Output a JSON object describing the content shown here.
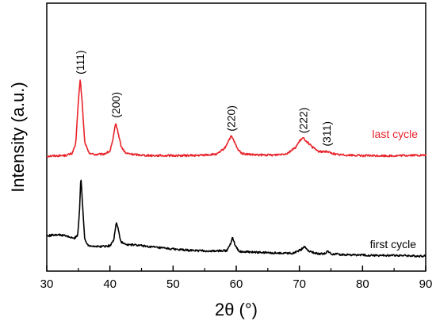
{
  "chart_data": {
    "type": "line",
    "xlabel": "2θ (°)",
    "ylabel": "Intensity (a.u.)",
    "xlim": [
      30,
      90
    ],
    "ylim": [
      0,
      100
    ],
    "xticks": [
      30,
      40,
      50,
      60,
      70,
      80,
      90
    ],
    "xtick_labels": [
      "30",
      "40",
      "50",
      "60",
      "70",
      "80",
      "90"
    ],
    "y_ticks_shown": false,
    "grid": false,
    "legend": "none",
    "series": [
      {
        "name": "last cycle",
        "color": "#e8232a",
        "points": [
          [
            30,
            49.3
          ],
          [
            33,
            49.6
          ],
          [
            34,
            50.5
          ],
          [
            34.6,
            55
          ],
          [
            35.0,
            75
          ],
          [
            35.3,
            84.7
          ],
          [
            35.6,
            74
          ],
          [
            36.0,
            56
          ],
          [
            36.6,
            51
          ],
          [
            37.5,
            50
          ],
          [
            39.0,
            50.2
          ],
          [
            40.0,
            51.5
          ],
          [
            40.5,
            57
          ],
          [
            40.9,
            64.7
          ],
          [
            41.3,
            60
          ],
          [
            41.8,
            53.5
          ],
          [
            42.5,
            50.6
          ],
          [
            44,
            50
          ],
          [
            46,
            49.6
          ],
          [
            50,
            49.5
          ],
          [
            54,
            49.6
          ],
          [
            57,
            50.2
          ],
          [
            58.2,
            53
          ],
          [
            58.8,
            56.5
          ],
          [
            59.2,
            58.5
          ],
          [
            59.6,
            56.5
          ],
          [
            60.2,
            52.5
          ],
          [
            61,
            50.4
          ],
          [
            63,
            49.8
          ],
          [
            66,
            49.8
          ],
          [
            68,
            50.5
          ],
          [
            69.3,
            53
          ],
          [
            70.2,
            56.8
          ],
          [
            70.6,
            57.6
          ],
          [
            71.1,
            56.2
          ],
          [
            72,
            53.5
          ],
          [
            73,
            51.5
          ],
          [
            73.8,
            51.2
          ],
          [
            74.3,
            51.6
          ],
          [
            74.9,
            50.8
          ],
          [
            76,
            50
          ],
          [
            80,
            49.5
          ],
          [
            85,
            49.4
          ],
          [
            88,
            49.7
          ],
          [
            90,
            49.6
          ]
        ]
      },
      {
        "name": "first cycle",
        "color": "#000000",
        "points": [
          [
            30,
            12.5
          ],
          [
            31.5,
            13.2
          ],
          [
            33,
            12.6
          ],
          [
            34.3,
            11.3
          ],
          [
            34.9,
            13
          ],
          [
            35.2,
            25
          ],
          [
            35.4,
            40.3
          ],
          [
            35.7,
            25
          ],
          [
            36.0,
            11.5
          ],
          [
            36.5,
            8.3
          ],
          [
            38,
            7.6
          ],
          [
            40,
            8
          ],
          [
            40.6,
            10.5
          ],
          [
            41.0,
            19
          ],
          [
            41.3,
            16
          ],
          [
            41.7,
            10
          ],
          [
            42.5,
            8.5
          ],
          [
            44,
            8.4
          ],
          [
            48,
            7
          ],
          [
            52,
            6
          ],
          [
            56,
            5.5
          ],
          [
            58.5,
            5.8
          ],
          [
            59.1,
            9
          ],
          [
            59.4,
            12.1
          ],
          [
            59.8,
            8.5
          ],
          [
            60.5,
            5.3
          ],
          [
            63,
            5
          ],
          [
            66,
            4.7
          ],
          [
            69,
            4.6
          ],
          [
            70.3,
            6.3
          ],
          [
            70.8,
            7.7
          ],
          [
            71.4,
            5.8
          ],
          [
            72.5,
            4.5
          ],
          [
            74.0,
            4.3
          ],
          [
            74.5,
            5.6
          ],
          [
            75.0,
            4.3
          ],
          [
            77,
            3.9
          ],
          [
            80,
            3.7
          ],
          [
            83,
            3.5
          ],
          [
            86,
            3.6
          ],
          [
            88,
            3.3
          ],
          [
            90,
            3.3
          ]
        ]
      }
    ],
    "annotations": [
      {
        "text": "(111)",
        "x": 35.3
      },
      {
        "text": "(200)",
        "x": 40.9
      },
      {
        "text": "(220)",
        "x": 59.2
      },
      {
        "text": "(222)",
        "x": 70.6
      },
      {
        "text": "(311)",
        "x": 74.3
      }
    ]
  }
}
